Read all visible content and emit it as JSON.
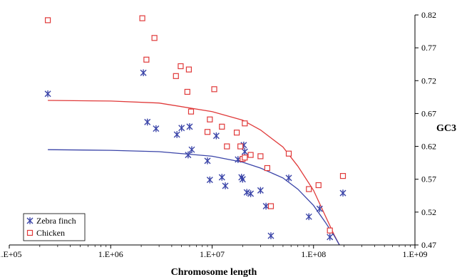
{
  "chart_data": {
    "type": "scatter",
    "xlabel": "Chromosome length",
    "ylabel": "GC3",
    "x_scale": "log",
    "xlim": [
      100000,
      1000000000
    ],
    "ylim": [
      0.47,
      0.82
    ],
    "x_ticks": [
      "1.E+05",
      "1.E+06",
      "1.E+07",
      "1.E+08",
      "1.E+09"
    ],
    "x_tick_values": [
      100000,
      1000000,
      10000000,
      100000000,
      1000000000
    ],
    "y_ticks": [
      "0.82",
      "0.77",
      "0.72",
      "0.67",
      "0.62",
      "0.57",
      "0.52",
      "0.47"
    ],
    "y_tick_values": [
      0.82,
      0.77,
      0.72,
      0.67,
      0.62,
      0.57,
      0.52,
      0.47
    ],
    "grid": false,
    "legend_position": "bottom-left",
    "series": [
      {
        "name": "Zebra finch",
        "marker": "asterisk",
        "color": "#3a44a8",
        "points": [
          [
            240000,
            0.7
          ],
          [
            2100000,
            0.732
          ],
          [
            2300000,
            0.657
          ],
          [
            2800000,
            0.647
          ],
          [
            4500000,
            0.638
          ],
          [
            5000000,
            0.648
          ],
          [
            5800000,
            0.607
          ],
          [
            6000000,
            0.65
          ],
          [
            6300000,
            0.615
          ],
          [
            9000000,
            0.598
          ],
          [
            9500000,
            0.569
          ],
          [
            11000000,
            0.636
          ],
          [
            12500000,
            0.573
          ],
          [
            13500000,
            0.56
          ],
          [
            18000000,
            0.6
          ],
          [
            19500000,
            0.573
          ],
          [
            20000000,
            0.57
          ],
          [
            20500000,
            0.622
          ],
          [
            21000000,
            0.612
          ],
          [
            22000000,
            0.55
          ],
          [
            24000000,
            0.548
          ],
          [
            30000000,
            0.553
          ],
          [
            34000000,
            0.529
          ],
          [
            38000000,
            0.484
          ],
          [
            57000000,
            0.572
          ],
          [
            90000000,
            0.513
          ],
          [
            115000000,
            0.525
          ],
          [
            145000000,
            0.482
          ],
          [
            195000000,
            0.549
          ]
        ]
      },
      {
        "name": "Chicken",
        "marker": "square",
        "color": "#e03a3a",
        "points": [
          [
            240000,
            0.812
          ],
          [
            2050000,
            0.815
          ],
          [
            2250000,
            0.752
          ],
          [
            2700000,
            0.785
          ],
          [
            4400000,
            0.727
          ],
          [
            4900000,
            0.742
          ],
          [
            5700000,
            0.703
          ],
          [
            5900000,
            0.737
          ],
          [
            6200000,
            0.673
          ],
          [
            9000000,
            0.642
          ],
          [
            9500000,
            0.661
          ],
          [
            10500000,
            0.707
          ],
          [
            12500000,
            0.65
          ],
          [
            14000000,
            0.62
          ],
          [
            17500000,
            0.641
          ],
          [
            19000000,
            0.62
          ],
          [
            20000000,
            0.601
          ],
          [
            21000000,
            0.603
          ],
          [
            21000000,
            0.655
          ],
          [
            24000000,
            0.607
          ],
          [
            30000000,
            0.605
          ],
          [
            35000000,
            0.587
          ],
          [
            38000000,
            0.529
          ],
          [
            57000000,
            0.609
          ],
          [
            90000000,
            0.555
          ],
          [
            112000000,
            0.561
          ],
          [
            145000000,
            0.492
          ],
          [
            195000000,
            0.575
          ]
        ]
      }
    ],
    "trend_lines": [
      {
        "series": "Chicken",
        "color": "#e03a3a",
        "points": [
          [
            240000,
            0.69
          ],
          [
            1000000,
            0.689
          ],
          [
            3000000,
            0.686
          ],
          [
            10000000,
            0.673
          ],
          [
            20000000,
            0.66
          ],
          [
            30000000,
            0.645
          ],
          [
            50000000,
            0.619
          ],
          [
            70000000,
            0.59
          ],
          [
            100000000,
            0.553
          ],
          [
            130000000,
            0.515
          ],
          [
            160000000,
            0.485
          ],
          [
            180000000,
            0.47
          ]
        ]
      },
      {
        "series": "Zebra finch",
        "color": "#3a44a8",
        "points": [
          [
            240000,
            0.615
          ],
          [
            1000000,
            0.614
          ],
          [
            3000000,
            0.612
          ],
          [
            10000000,
            0.605
          ],
          [
            20000000,
            0.596
          ],
          [
            30000000,
            0.587
          ],
          [
            50000000,
            0.572
          ],
          [
            70000000,
            0.555
          ],
          [
            100000000,
            0.53
          ],
          [
            130000000,
            0.505
          ],
          [
            160000000,
            0.484
          ],
          [
            180000000,
            0.47
          ]
        ]
      }
    ]
  }
}
